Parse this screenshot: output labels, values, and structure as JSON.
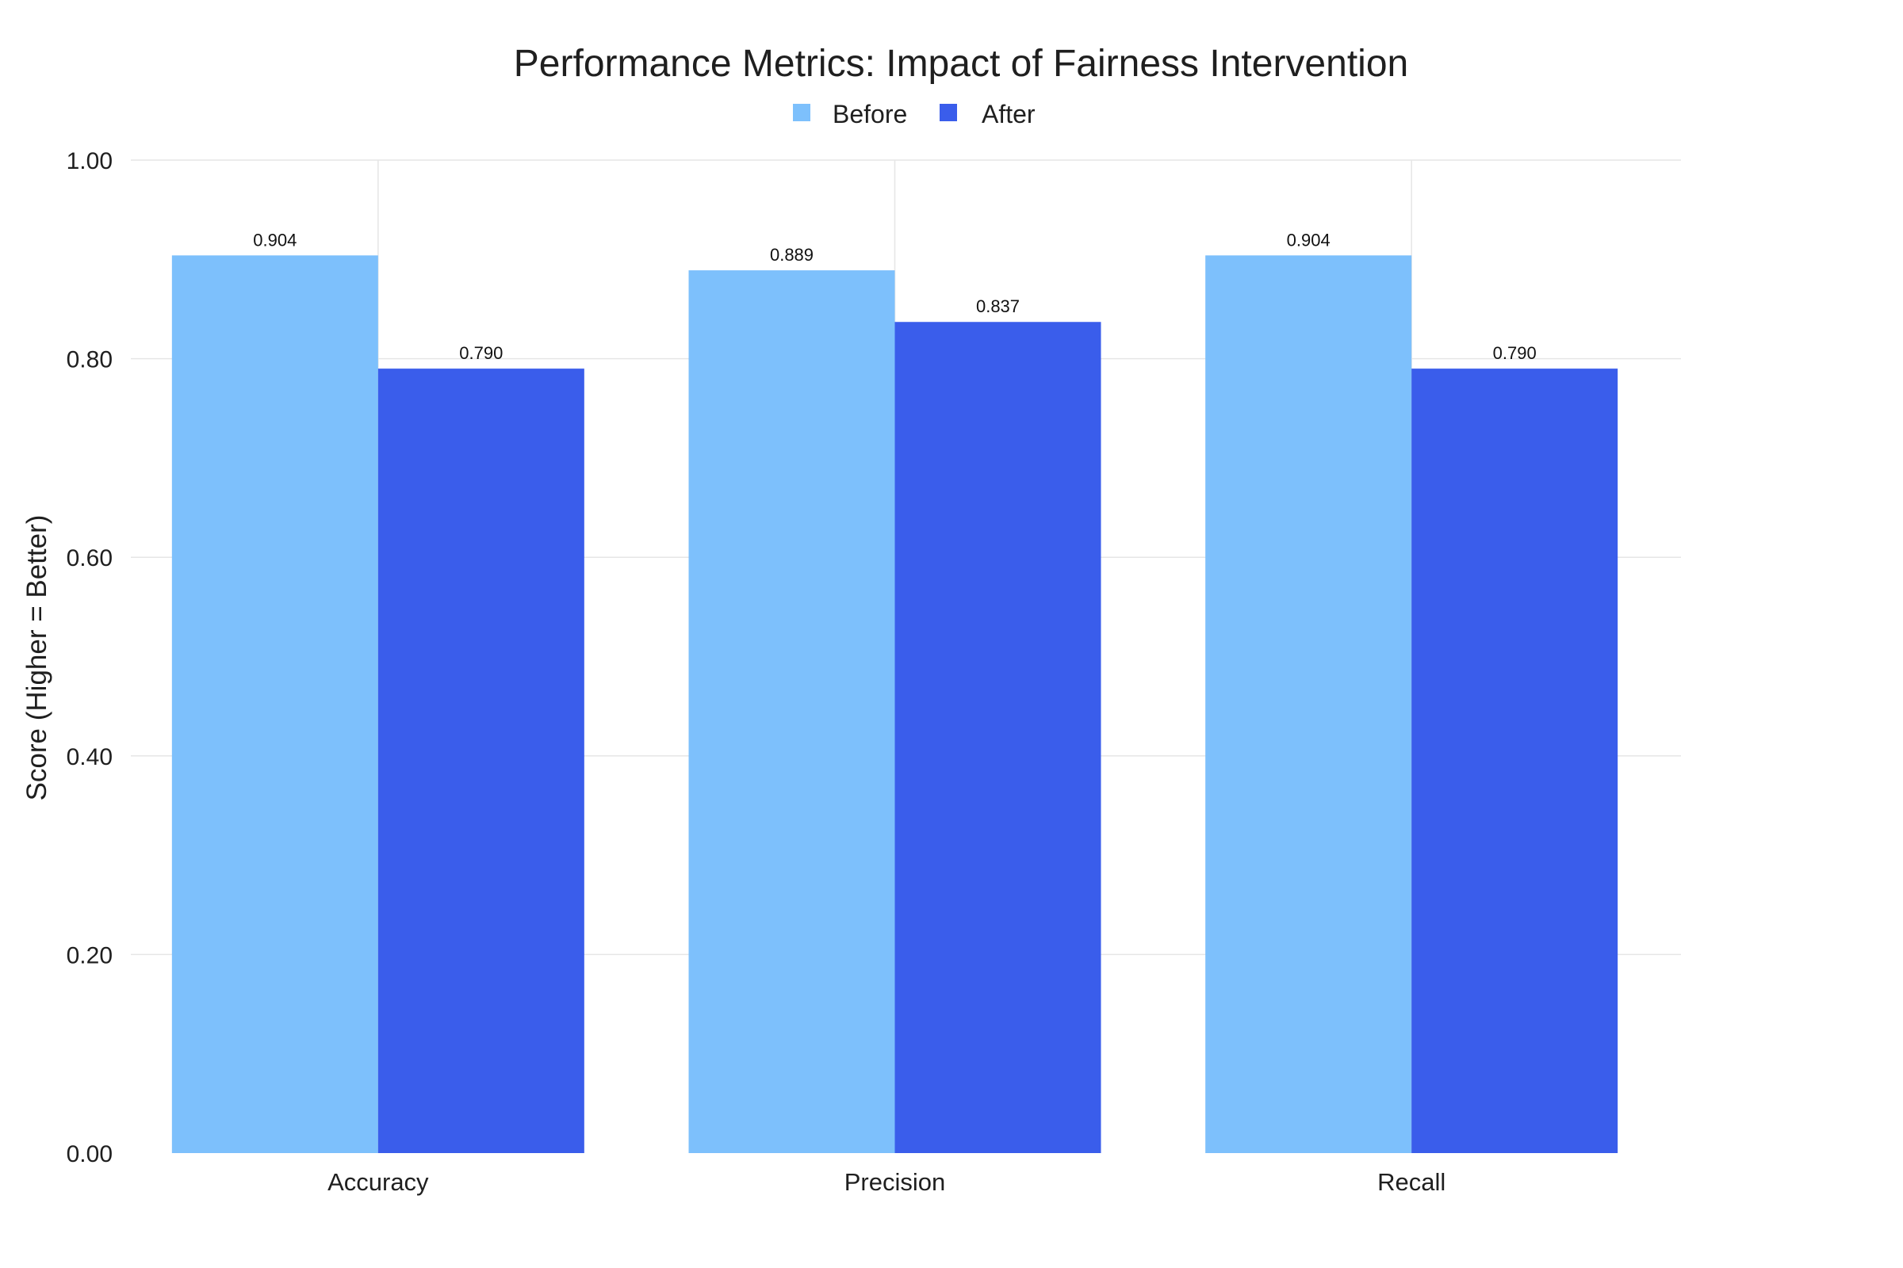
{
  "chart_data": {
    "type": "bar",
    "title": "Performance Metrics: Impact of Fairness Intervention",
    "xlabel": "",
    "ylabel": "Score (Higher = Better)",
    "categories": [
      "Accuracy",
      "Precision",
      "Recall"
    ],
    "series": [
      {
        "name": "Before",
        "color": "#7dc0fc",
        "values": [
          0.904,
          0.889,
          0.904
        ],
        "labels": [
          "0.904",
          "0.889",
          "0.904"
        ]
      },
      {
        "name": "After",
        "color": "#3a5deb",
        "values": [
          0.79,
          0.837,
          0.79
        ],
        "labels": [
          "0.790",
          "0.837",
          "0.790"
        ]
      }
    ],
    "ylim": [
      0,
      1.0
    ],
    "yticks": [
      0,
      0.2,
      0.4,
      0.6,
      0.8,
      1.0
    ],
    "ytick_labels": [
      "0.00",
      "0.20",
      "0.40",
      "0.60",
      "0.80",
      "1.00"
    ],
    "grid": true,
    "legend": "top-center"
  }
}
